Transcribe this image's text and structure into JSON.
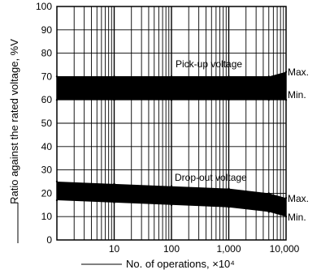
{
  "chart_data": {
    "type": "area",
    "title": "",
    "xlabel": "No. of operations, ×10⁴",
    "ylabel": "Ratio against the rated voltage, %V",
    "xscale": "log",
    "xlim": [
      1,
      10000
    ],
    "ylim": [
      0,
      100
    ],
    "x_ticks": [
      10,
      100,
      1000,
      10000
    ],
    "x_tick_labels": [
      "10",
      "100",
      "1,000",
      "10,000"
    ],
    "y_ticks": [
      0,
      10,
      20,
      30,
      40,
      50,
      60,
      70,
      80,
      90,
      100
    ],
    "y_tick_labels": [
      "0",
      "10",
      "20",
      "30",
      "40",
      "50",
      "60",
      "70",
      "80",
      "90",
      "100"
    ],
    "grid": true,
    "series": [
      {
        "name": "Pick-up voltage",
        "x": [
          1,
          10,
          100,
          1000,
          5000,
          10000
        ],
        "max": [
          70,
          70,
          70,
          70,
          70,
          72
        ],
        "min": [
          60,
          60,
          60,
          60,
          60,
          60
        ]
      },
      {
        "name": "Drop-out voltage",
        "x": [
          1,
          10,
          100,
          1000,
          5000,
          10000
        ],
        "max": [
          25,
          24,
          23,
          22,
          20,
          18
        ],
        "min": [
          17,
          16,
          15,
          14,
          12,
          10
        ]
      }
    ],
    "annotations": [
      "Max.",
      "Min.",
      "Max.",
      "Min."
    ]
  }
}
